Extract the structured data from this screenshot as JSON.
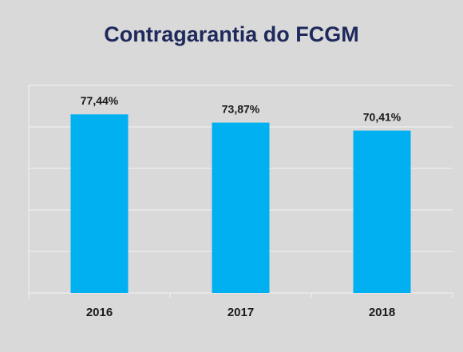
{
  "chart_data": {
    "type": "bar",
    "title": "Contragarantia do FCGM",
    "categories": [
      "2016",
      "2017",
      "2018"
    ],
    "values": [
      77.44,
      73.87,
      70.41
    ],
    "value_labels": [
      "77,44%",
      "73,87%",
      "70,41%"
    ],
    "color": "#00b0f0",
    "ylim": [
      0,
      90
    ],
    "yticks": [
      0,
      18,
      36,
      54,
      72,
      90
    ],
    "grid": true
  }
}
